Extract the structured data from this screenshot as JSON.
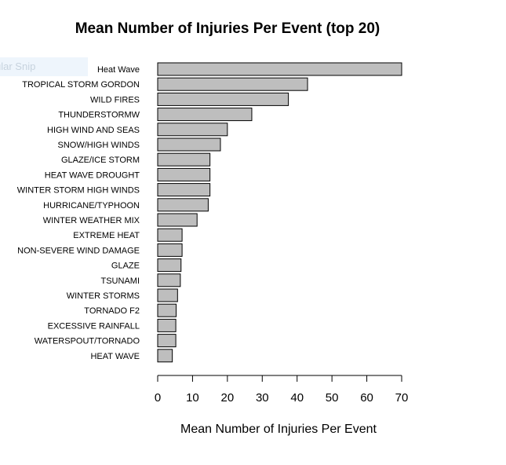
{
  "overlay": {
    "text": "ular Snip"
  },
  "chart_data": {
    "type": "bar",
    "orientation": "horizontal",
    "title": "Mean Number of Injuries Per Event (top 20)",
    "xlabel": "Mean Number of Injuries Per Event",
    "ylabel": "",
    "xlim": [
      0,
      70
    ],
    "xticks": [
      0,
      10,
      20,
      30,
      40,
      50,
      60,
      70
    ],
    "grid": false,
    "bar_color": "#bebebe",
    "edge_color": "#000000",
    "categories": [
      "Heat Wave",
      "TROPICAL STORM GORDON",
      "WILD FIRES",
      "THUNDERSTORMW",
      "HIGH WIND AND SEAS",
      "SNOW/HIGH WINDS",
      "GLAZE/ICE STORM",
      "HEAT WAVE DROUGHT",
      "WINTER STORM HIGH WINDS",
      "HURRICANE/TYPHOON",
      "WINTER WEATHER MIX",
      "EXTREME HEAT",
      "NON-SEVERE WIND DAMAGE",
      "GLAZE",
      "TSUNAMI",
      "WINTER STORMS",
      "TORNADO F2",
      "EXCESSIVE RAINFALL",
      "WATERSPOUT/TORNADO",
      "HEAT WAVE"
    ],
    "values": [
      70,
      43,
      37.5,
      27,
      20,
      18,
      15,
      15,
      15,
      14.5,
      11.3,
      7,
      7,
      6.7,
      6.5,
      5.7,
      5.3,
      5.2,
      5.2,
      4.2
    ]
  }
}
